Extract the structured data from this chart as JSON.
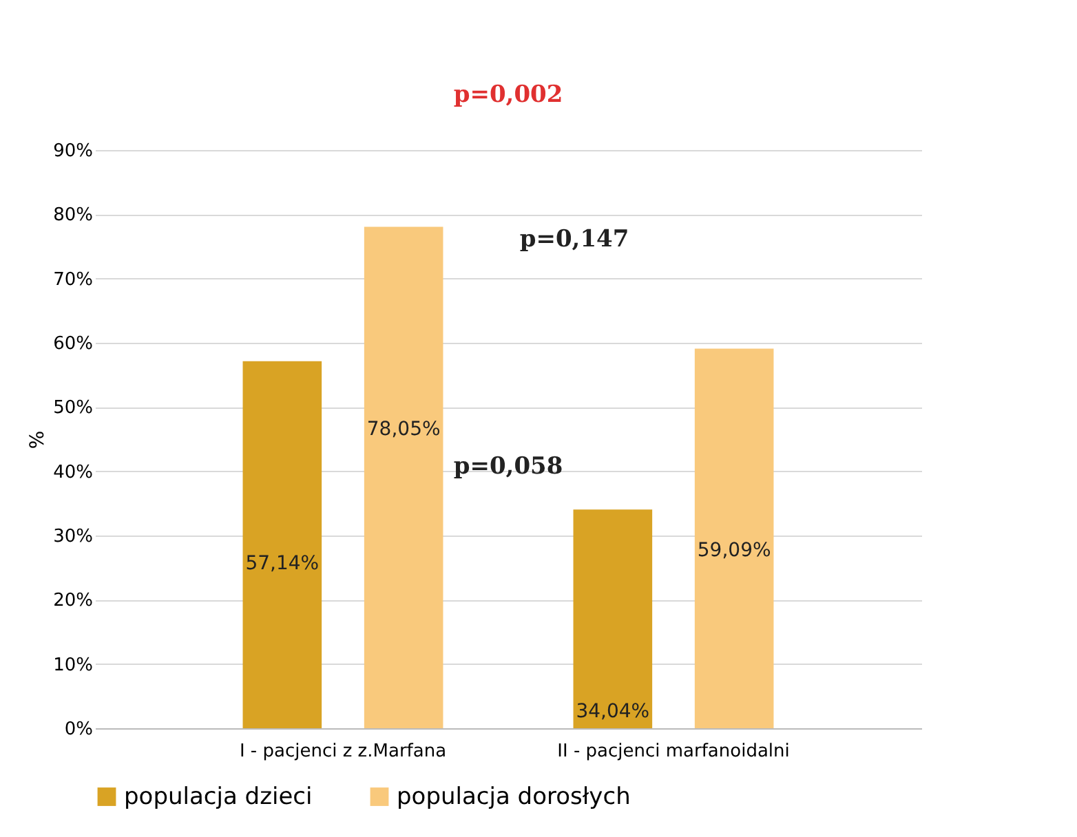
{
  "chart_data": {
    "type": "bar",
    "ylabel": "%",
    "categories": [
      "I - pacjenci z z.Marfana",
      "II - pacjenci marfanoidalni"
    ],
    "series": [
      {
        "name": "populacja dzieci",
        "color": "#d9a324",
        "values": [
          57.14,
          34.04
        ],
        "value_labels": [
          "57,14%",
          "34,04%"
        ]
      },
      {
        "name": "populacja dorosłych",
        "color": "#f9c97c",
        "values": [
          78.05,
          59.09
        ],
        "value_labels": [
          "78,05%",
          "59,09%"
        ]
      }
    ],
    "ylim": [
      0,
      90
    ],
    "yticks": [
      {
        "value": 0,
        "label": "0%"
      },
      {
        "value": 10,
        "label": "10%"
      },
      {
        "value": 20,
        "label": "20%"
      },
      {
        "value": 30,
        "label": "30%"
      },
      {
        "value": 40,
        "label": "40%"
      },
      {
        "value": 50,
        "label": "50%"
      },
      {
        "value": 60,
        "label": "60%"
      },
      {
        "value": 70,
        "label": "70%"
      },
      {
        "value": 80,
        "label": "80%"
      },
      {
        "value": 90,
        "label": "90%"
      }
    ],
    "grid": "y",
    "legend": "bottom",
    "annotations": [
      "p=0,002",
      "p=0,147",
      "p=0,058"
    ]
  }
}
